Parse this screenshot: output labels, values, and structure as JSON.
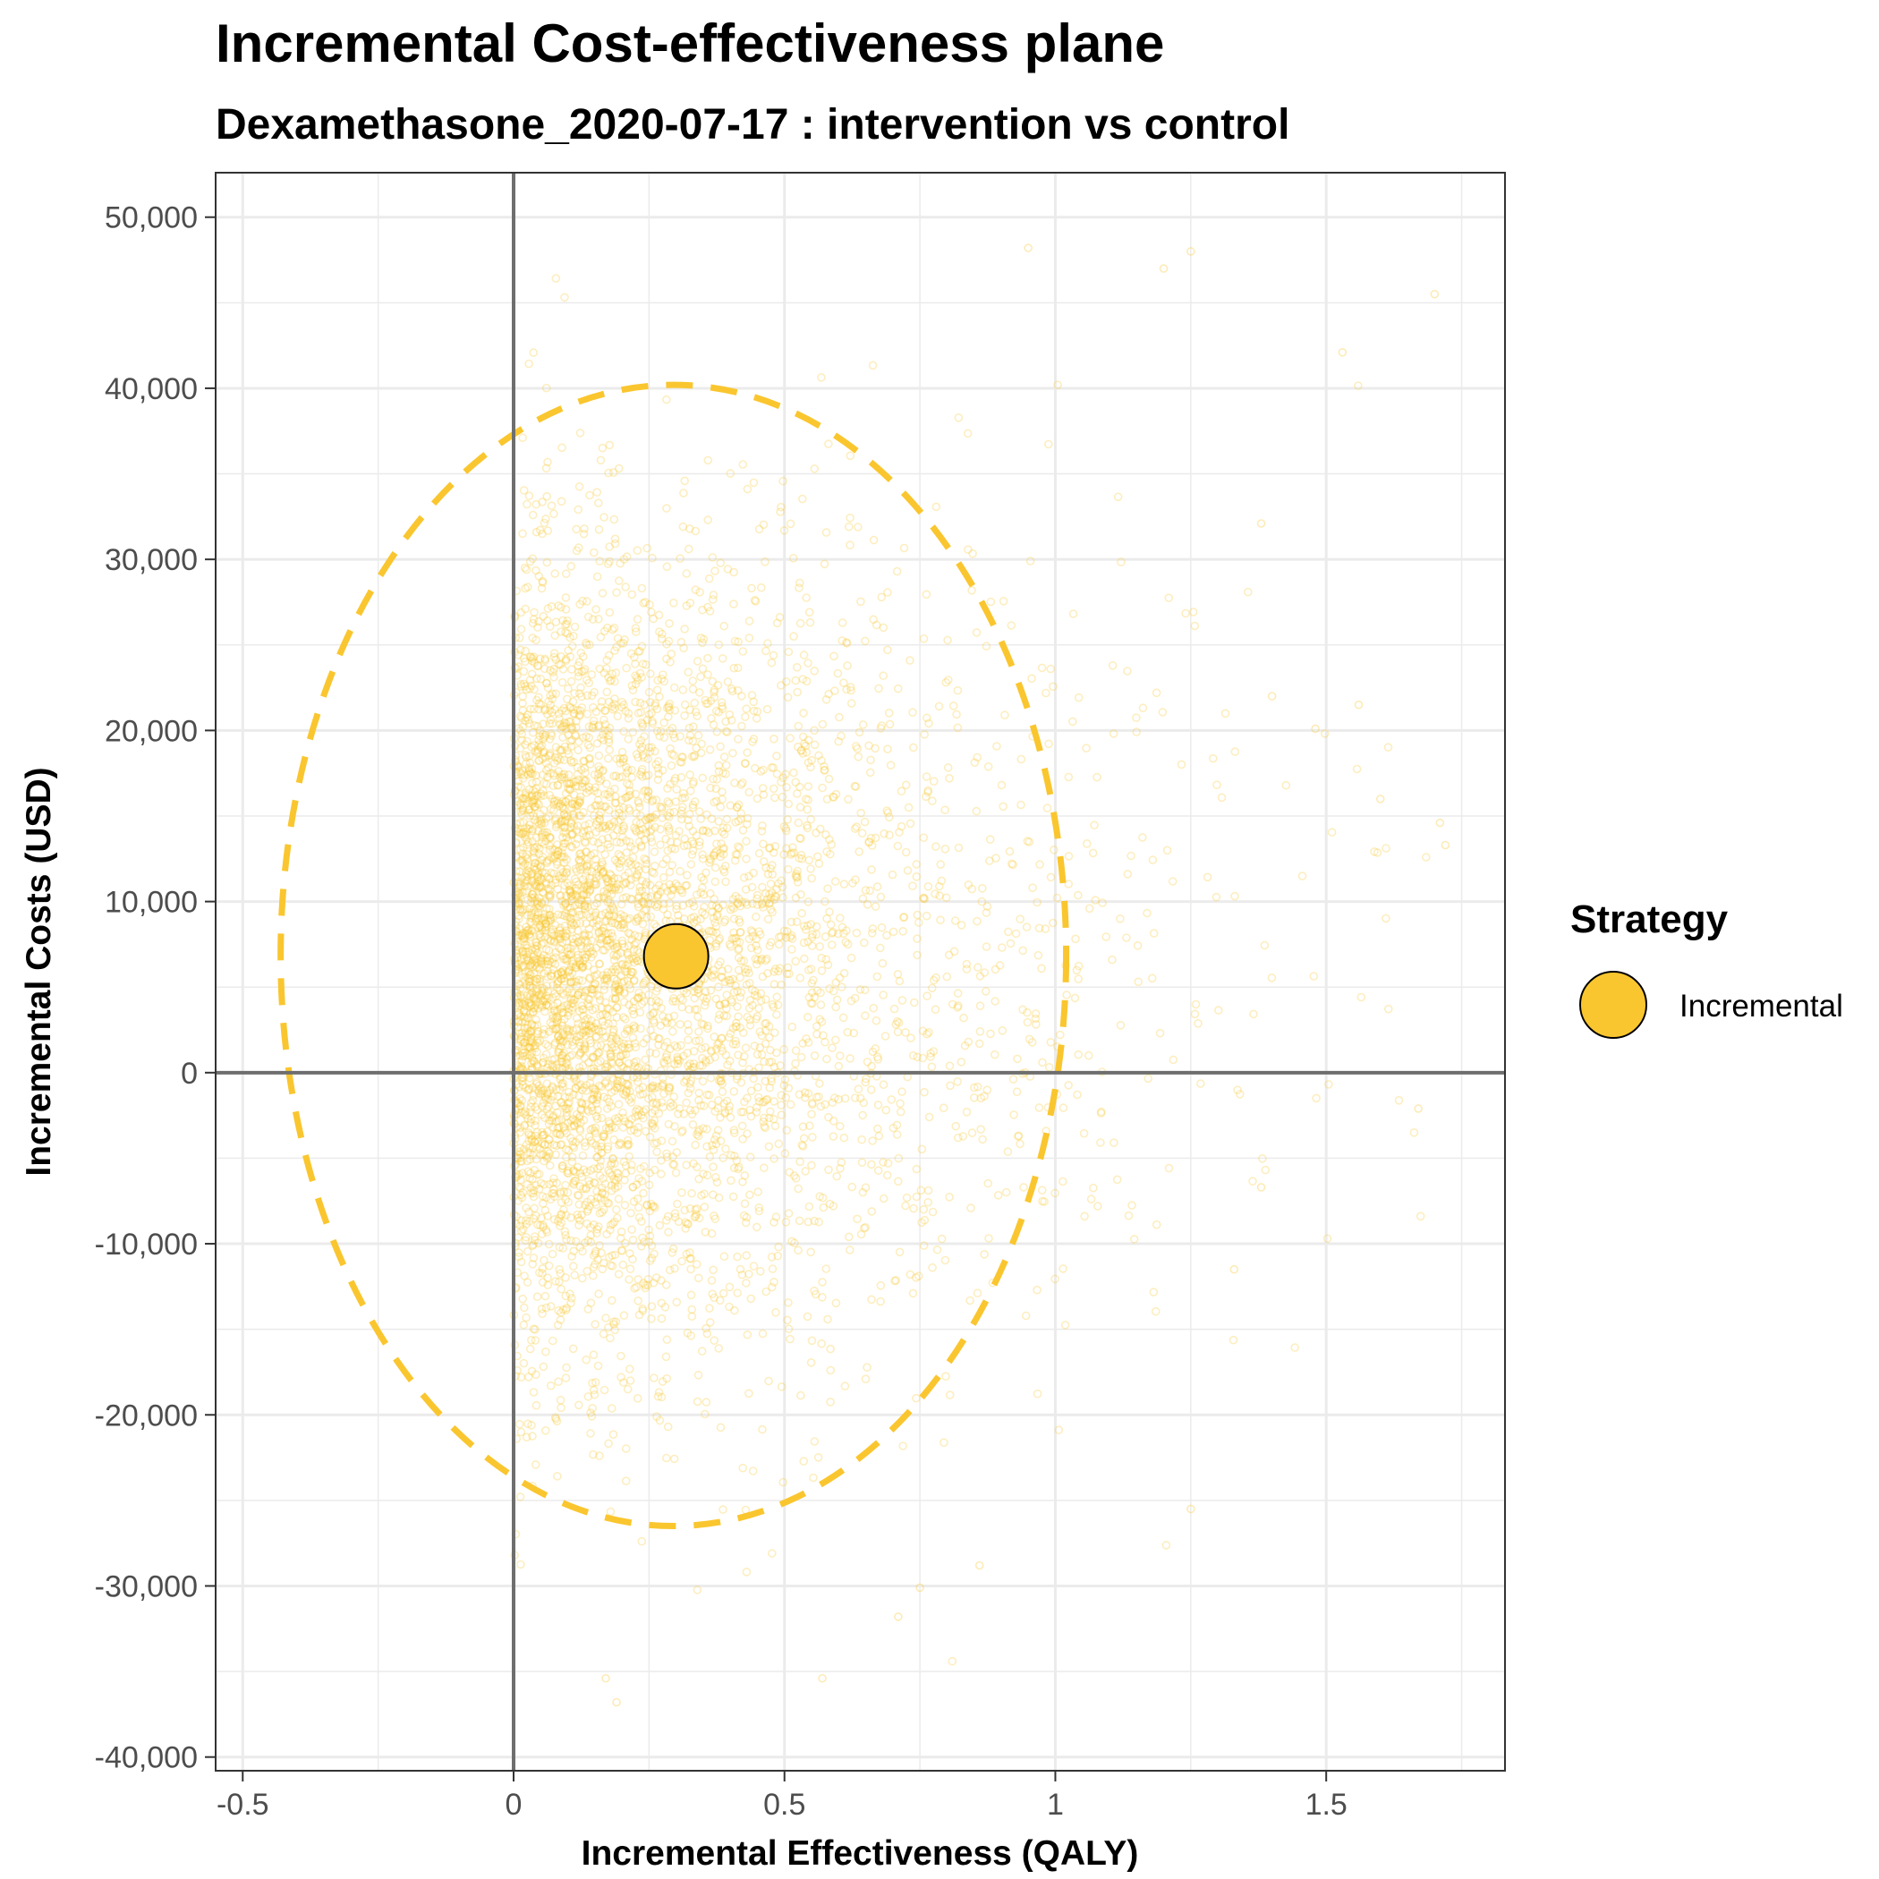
{
  "chart_data": {
    "type": "scatter",
    "title": "Incremental Cost-effectiveness plane",
    "subtitle": "Dexamethasone_2020-07-17 : intervention vs control",
    "xlabel": "Incremental Effectiveness (QALY)",
    "ylabel": "Incremental Costs (USD)",
    "xlim": [
      -0.55,
      1.83
    ],
    "ylim": [
      -40800,
      52600
    ],
    "x_ticks": [
      -0.5,
      0,
      0.5,
      1,
      1.5
    ],
    "x_tick_labels": [
      "-0.5",
      "0",
      "0.5",
      "1",
      "1.5"
    ],
    "y_ticks": [
      -40000,
      -30000,
      -20000,
      -10000,
      0,
      10000,
      20000,
      30000,
      40000,
      50000
    ],
    "y_tick_labels": [
      "-40,000",
      "-30,000",
      "-20,000",
      "-10,000",
      "0",
      "10,000",
      "20,000",
      "30,000",
      "40,000",
      "50,000"
    ],
    "grid": true,
    "legend": {
      "title": "Strategy",
      "position": "right",
      "entries": [
        {
          "label": "Incremental",
          "color": "#FAC62F"
        }
      ]
    },
    "series": [
      {
        "name": "Incremental",
        "color": "#FAC62F",
        "mean_point": {
          "x": 0.3,
          "y": 6800
        },
        "simulation_cloud": {
          "x_min": 0,
          "x_max": 1.72,
          "y_min": -36800,
          "y_max": 48300,
          "x_mean": 0.3,
          "y_mean": 6800,
          "y_sd": 11500,
          "points_shown": 5000
        },
        "confidence_ellipse": {
          "center": {
            "x": 0.3,
            "y": 6900
          },
          "x_range": [
            -0.43,
            1.02
          ],
          "y_range": [
            -26500,
            40200
          ]
        },
        "outlier_points": [
          {
            "x": 1.7,
            "y": 45500
          },
          {
            "x": 1.53,
            "y": 42100
          },
          {
            "x": 1.2,
            "y": 47000
          },
          {
            "x": 1.25,
            "y": 48000
          },
          {
            "x": 0.95,
            "y": 48200
          },
          {
            "x": 1.48,
            "y": 20100
          },
          {
            "x": 1.71,
            "y": 14600
          },
          {
            "x": 1.72,
            "y": 13300
          },
          {
            "x": 1.6,
            "y": 16000
          },
          {
            "x": 1.56,
            "y": 21500
          },
          {
            "x": 1.67,
            "y": -2100
          },
          {
            "x": 1.38,
            "y": 32100
          },
          {
            "x": 1.4,
            "y": 22000
          },
          {
            "x": 0.19,
            "y": -36800
          },
          {
            "x": 0.17,
            "y": -35400
          },
          {
            "x": 0.57,
            "y": -35400
          },
          {
            "x": 0.71,
            "y": -31800
          },
          {
            "x": 0.75,
            "y": -30100
          },
          {
            "x": 0.86,
            "y": -28800
          },
          {
            "x": 1.25,
            "y": -25500
          },
          {
            "x": 1.33,
            "y": -11500
          },
          {
            "x": 1.38,
            "y": -6700
          }
        ]
      }
    ]
  }
}
